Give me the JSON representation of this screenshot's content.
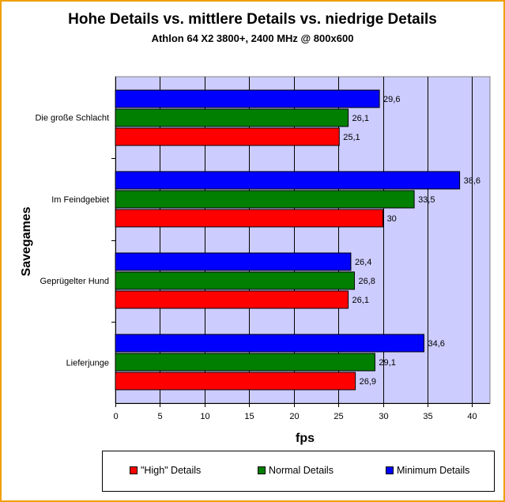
{
  "chart_data": {
    "type": "bar",
    "orientation": "horizontal",
    "title": "Hohe Details vs. mittlere Details vs. niedrige Details",
    "subtitle": "Athlon 64 X2 3800+, 2400 MHz @ 800x600",
    "xlabel": "fps",
    "ylabel": "Savegames",
    "xlim": [
      0,
      42
    ],
    "xticks": [
      0,
      5,
      10,
      15,
      20,
      25,
      30,
      35,
      40
    ],
    "grid": true,
    "legend_position": "bottom",
    "categories": [
      "Die große Schlacht",
      "Im Feindgebiet",
      "Geprügelter Hund",
      "Lieferjunge"
    ],
    "series": [
      {
        "name": "Minimum Details",
        "color": "#0000ff",
        "values": [
          29.6,
          38.6,
          26.4,
          34.6
        ],
        "labels": [
          "29,6",
          "38,6",
          "26,4",
          "34,6"
        ]
      },
      {
        "name": "Normal Details",
        "color": "#007f00",
        "values": [
          26.1,
          33.5,
          26.8,
          29.1
        ],
        "labels": [
          "26,1",
          "33,5",
          "26,8",
          "29,1"
        ]
      },
      {
        "name": "\"High\" Details",
        "color": "#ff0000",
        "values": [
          25.1,
          30,
          26.1,
          26.9
        ],
        "labels": [
          "25,1",
          "30",
          "26,1",
          "26,9"
        ]
      }
    ],
    "legend_order": [
      "\"High\" Details",
      "Normal Details",
      "Minimum Details"
    ],
    "plot_background": "#ccccff"
  }
}
